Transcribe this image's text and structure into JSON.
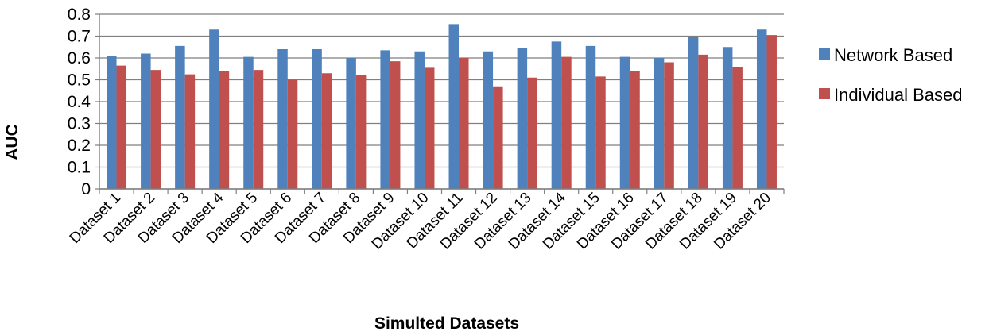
{
  "chart_data": {
    "type": "bar",
    "title": "",
    "xlabel": "Simulted Datasets",
    "ylabel": "AUC",
    "ylim": [
      0,
      0.8
    ],
    "yticks": [
      "0",
      "0.1",
      "0.2",
      "0.3",
      "0.4",
      "0.5",
      "0.6",
      "0.7",
      "0.8"
    ],
    "grid": true,
    "legend_position": "right",
    "categories": [
      "Dataset 1",
      "Dataset 2",
      "Dataset 3",
      "Dataset 4",
      "Dataset 5",
      "Dataset 6",
      "Dataset 7",
      "Dataset 8",
      "Dataset 9",
      "Dataset 10",
      "Dataset 11",
      "Dataset 12",
      "Dataset 13",
      "Dataset 14",
      "Dataset 15",
      "Dataset 16",
      "Dataset 17",
      "Dataset 18",
      "Dataset 19",
      "Dataset 20"
    ],
    "series": [
      {
        "name": "Network Based",
        "color": "#4F81BD",
        "values": [
          0.61,
          0.62,
          0.655,
          0.73,
          0.605,
          0.64,
          0.64,
          0.6,
          0.635,
          0.63,
          0.755,
          0.63,
          0.645,
          0.675,
          0.655,
          0.605,
          0.6,
          0.695,
          0.65,
          0.73
        ]
      },
      {
        "name": "Individual Based",
        "color": "#C0504D",
        "values": [
          0.565,
          0.545,
          0.525,
          0.54,
          0.545,
          0.5,
          0.53,
          0.52,
          0.585,
          0.555,
          0.6,
          0.47,
          0.51,
          0.605,
          0.515,
          0.54,
          0.58,
          0.615,
          0.56,
          0.705
        ]
      }
    ]
  }
}
